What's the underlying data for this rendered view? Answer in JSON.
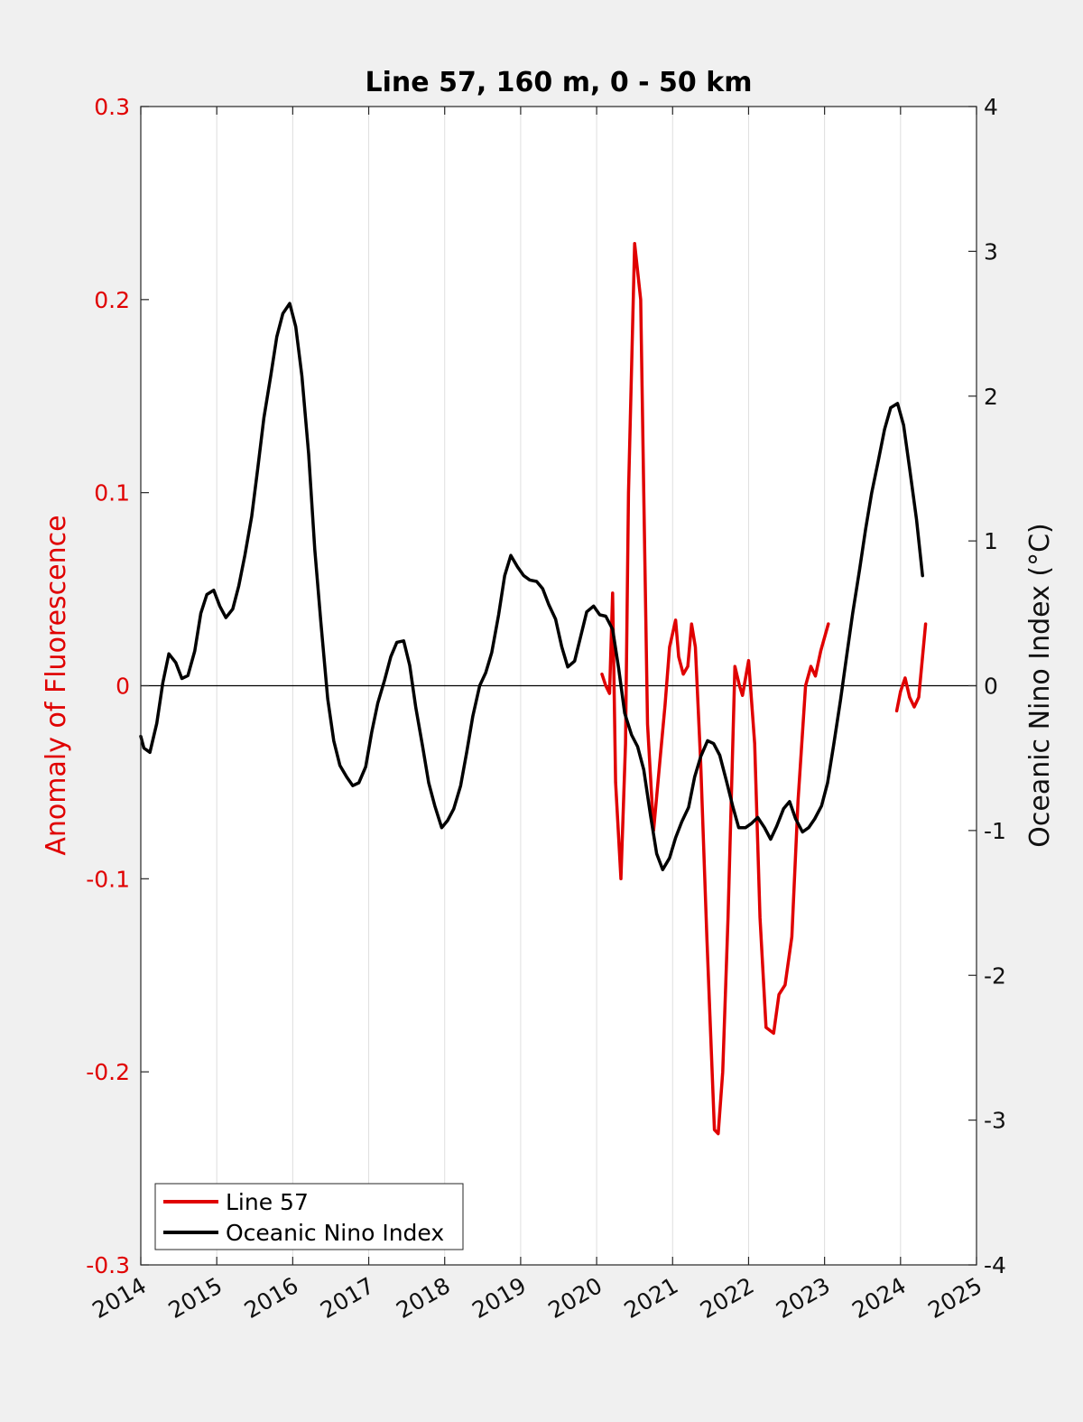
{
  "chart_data": {
    "type": "line",
    "title": "Line 57, 160 m, 0 - 50 km",
    "ylabel_left": "Anomaly of Fluorescence",
    "ylabel_right": "Oceanic Nino Index (°C)",
    "xlim": [
      2014,
      2025
    ],
    "ylim_left": [
      -0.3,
      0.3
    ],
    "ylim_right": [
      -4,
      4
    ],
    "x_ticks": [
      "2014",
      "2015",
      "2016",
      "2017",
      "2018",
      "2019",
      "2020",
      "2021",
      "2022",
      "2023",
      "2024",
      "2025"
    ],
    "y_left_ticks": [
      "0.3",
      "0.2",
      "0.1",
      "0",
      "-0.1",
      "-0.2",
      "-0.3"
    ],
    "y_right_ticks": [
      "4",
      "3",
      "2",
      "1",
      "0",
      "-1",
      "-2",
      "-3",
      "-4"
    ],
    "grid": "vertical",
    "legend_position": "bottom-left",
    "colors": {
      "line57": "#e00000",
      "oni": "#000000",
      "left_axis": "#e00000"
    },
    "series": [
      {
        "name": "Line 57",
        "axis": "left",
        "segments": [
          {
            "x": [
              2020.07,
              2020.12,
              2020.17,
              2020.21,
              2020.25,
              2020.32,
              2020.38,
              2020.42,
              2020.5,
              2020.58,
              2020.62,
              2020.67,
              2020.75,
              2020.83,
              2020.9,
              2020.96,
              2021.04,
              2021.08,
              2021.14,
              2021.2,
              2021.25,
              2021.3,
              2021.37,
              2021.45,
              2021.55,
              2021.6,
              2021.66,
              2021.73,
              2021.82,
              2021.88,
              2021.92,
              2022.0,
              2022.08,
              2022.15,
              2022.23,
              2022.33,
              2022.4,
              2022.48,
              2022.57,
              2022.65,
              2022.75,
              2022.82,
              2022.88,
              2022.95,
              2023.05
            ],
            "y": [
              0.006,
              0.0,
              -0.004,
              0.048,
              -0.05,
              -0.1,
              -0.03,
              0.1,
              0.229,
              0.2,
              0.1,
              -0.02,
              -0.075,
              -0.04,
              -0.01,
              0.02,
              0.034,
              0.015,
              0.006,
              0.01,
              0.032,
              0.02,
              -0.04,
              -0.13,
              -0.23,
              -0.232,
              -0.2,
              -0.12,
              0.01,
              0.0,
              -0.005,
              0.013,
              -0.03,
              -0.12,
              -0.177,
              -0.18,
              -0.16,
              -0.155,
              -0.13,
              -0.06,
              0.0,
              0.01,
              0.005,
              0.018,
              0.032
            ]
          },
          {
            "x": [
              2023.95,
              2024.0,
              2024.06,
              2024.12,
              2024.18,
              2024.24,
              2024.33
            ],
            "y": [
              -0.013,
              -0.003,
              0.004,
              -0.006,
              -0.011,
              -0.006,
              0.032
            ]
          }
        ]
      },
      {
        "name": "Oceanic Nino Index",
        "axis": "right",
        "x": [
          2014.0,
          2014.04,
          2014.12,
          2014.21,
          2014.29,
          2014.37,
          2014.46,
          2014.54,
          2014.62,
          2014.71,
          2014.79,
          2014.87,
          2014.96,
          2015.04,
          2015.12,
          2015.21,
          2015.29,
          2015.37,
          2015.46,
          2015.54,
          2015.62,
          2015.71,
          2015.79,
          2015.87,
          2015.96,
          2016.04,
          2016.12,
          2016.21,
          2016.29,
          2016.37,
          2016.46,
          2016.54,
          2016.62,
          2016.71,
          2016.79,
          2016.87,
          2016.96,
          2017.04,
          2017.12,
          2017.21,
          2017.29,
          2017.37,
          2017.46,
          2017.54,
          2017.62,
          2017.71,
          2017.79,
          2017.87,
          2017.96,
          2018.04,
          2018.12,
          2018.21,
          2018.29,
          2018.37,
          2018.46,
          2018.54,
          2018.62,
          2018.71,
          2018.79,
          2018.87,
          2018.96,
          2019.04,
          2019.12,
          2019.21,
          2019.29,
          2019.37,
          2019.46,
          2019.54,
          2019.62,
          2019.71,
          2019.79,
          2019.87,
          2019.96,
          2020.04,
          2020.12,
          2020.21,
          2020.29,
          2020.37,
          2020.46,
          2020.54,
          2020.62,
          2020.71,
          2020.79,
          2020.87,
          2020.96,
          2021.04,
          2021.12,
          2021.21,
          2021.29,
          2021.37,
          2021.46,
          2021.54,
          2021.62,
          2021.71,
          2021.79,
          2021.87,
          2021.96,
          2022.04,
          2022.12,
          2022.21,
          2022.29,
          2022.37,
          2022.46,
          2022.54,
          2022.62,
          2022.71,
          2022.79,
          2022.87,
          2022.96,
          2023.04,
          2023.12,
          2023.21,
          2023.29,
          2023.37,
          2023.46,
          2023.54,
          2023.62,
          2023.71,
          2023.79,
          2023.87,
          2023.96,
          2024.04,
          2024.12,
          2024.21,
          2024.29
        ],
        "y": [
          -0.35,
          -0.43,
          -0.46,
          -0.26,
          0.02,
          0.22,
          0.16,
          0.05,
          0.07,
          0.24,
          0.5,
          0.63,
          0.66,
          0.55,
          0.47,
          0.53,
          0.69,
          0.9,
          1.17,
          1.5,
          1.85,
          2.14,
          2.41,
          2.57,
          2.64,
          2.48,
          2.14,
          1.6,
          0.94,
          0.44,
          -0.09,
          -0.38,
          -0.55,
          -0.63,
          -0.69,
          -0.67,
          -0.56,
          -0.32,
          -0.12,
          0.04,
          0.2,
          0.3,
          0.31,
          0.14,
          -0.15,
          -0.42,
          -0.67,
          -0.83,
          -0.98,
          -0.93,
          -0.85,
          -0.69,
          -0.46,
          -0.21,
          0.0,
          0.09,
          0.23,
          0.49,
          0.76,
          0.9,
          0.82,
          0.76,
          0.73,
          0.72,
          0.67,
          0.56,
          0.46,
          0.27,
          0.13,
          0.17,
          0.34,
          0.51,
          0.55,
          0.49,
          0.48,
          0.39,
          0.12,
          -0.19,
          -0.34,
          -0.42,
          -0.58,
          -0.9,
          -1.16,
          -1.27,
          -1.19,
          -1.05,
          -0.94,
          -0.84,
          -0.63,
          -0.49,
          -0.38,
          -0.4,
          -0.48,
          -0.66,
          -0.83,
          -0.98,
          -0.98,
          -0.95,
          -0.91,
          -0.98,
          -1.06,
          -0.97,
          -0.85,
          -0.8,
          -0.92,
          -1.01,
          -0.98,
          -0.92,
          -0.83,
          -0.67,
          -0.41,
          -0.1,
          0.2,
          0.5,
          0.8,
          1.08,
          1.33,
          1.56,
          1.77,
          1.92,
          1.95,
          1.8,
          1.5,
          1.15,
          0.76
        ]
      }
    ]
  }
}
